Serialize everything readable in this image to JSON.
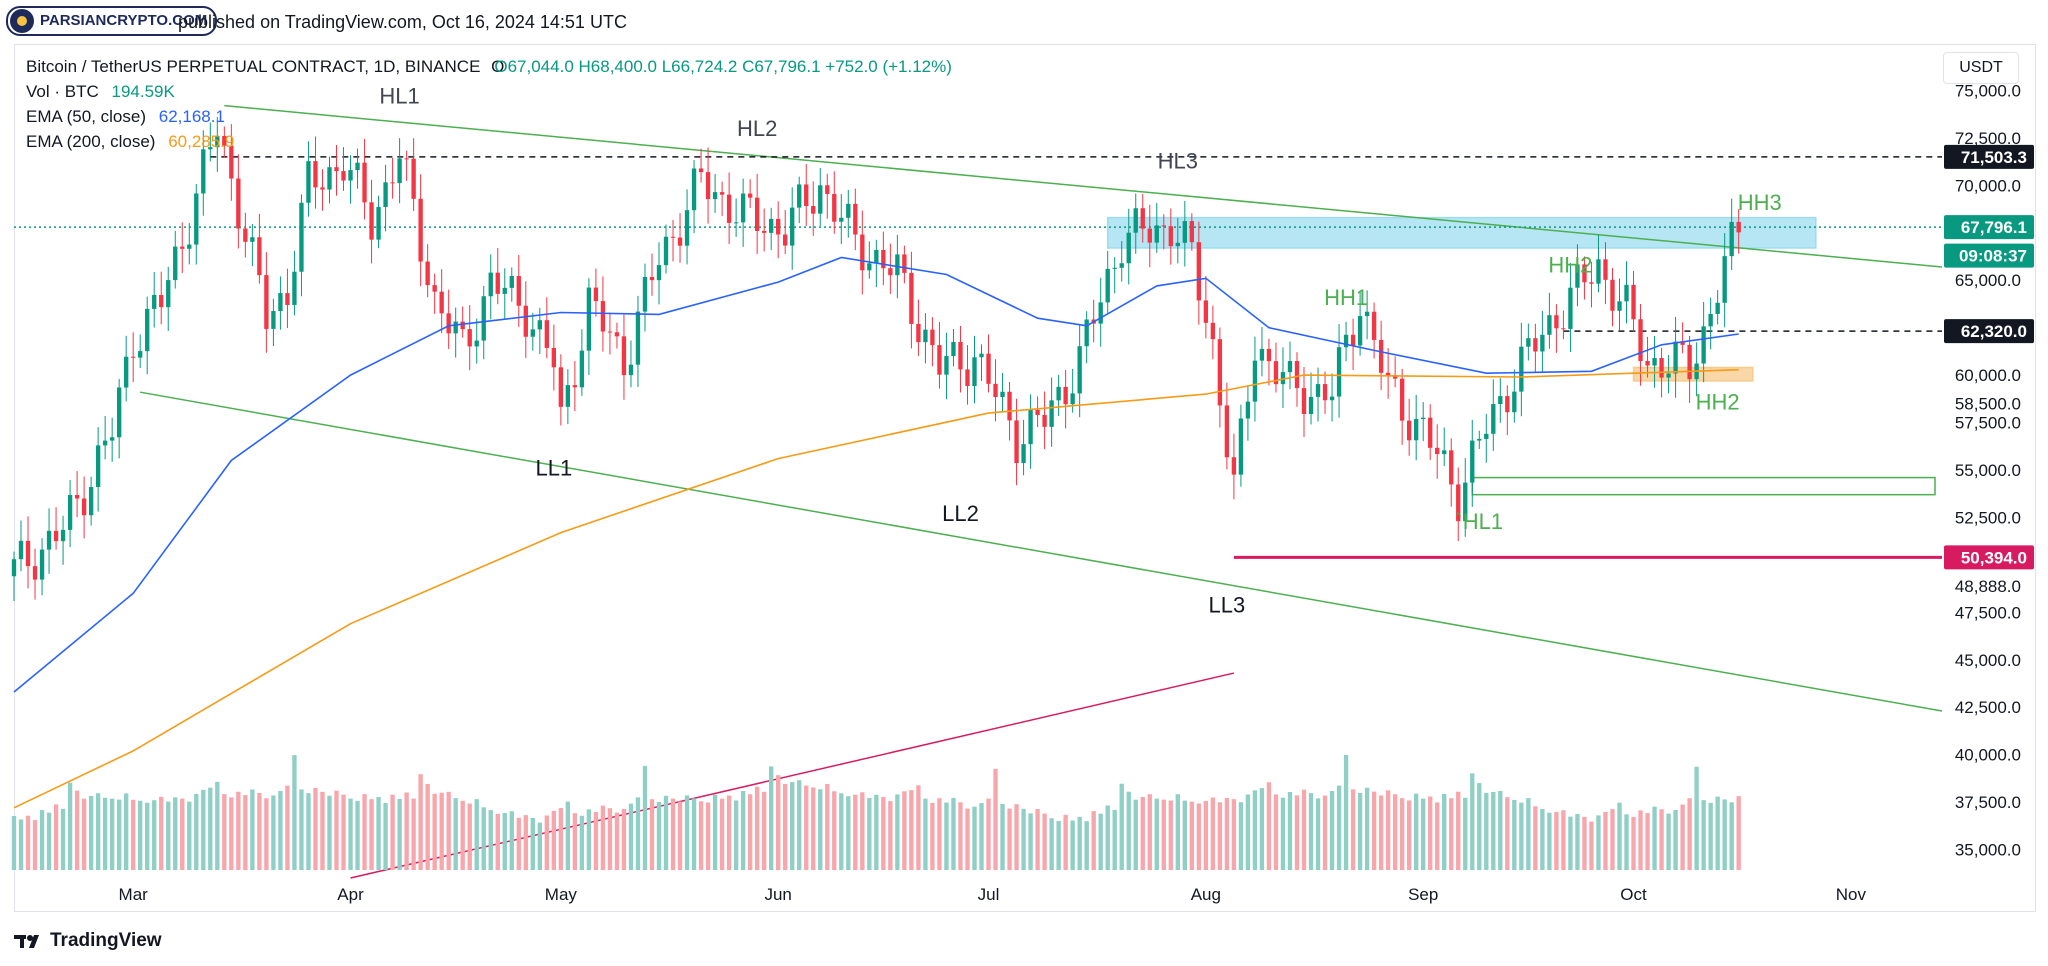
{
  "header": {
    "watermark": "PARSIANCRYPTO.COM",
    "published": "published on TradingView.com, Oct 16, 2024 14:51 UTC"
  },
  "legend": {
    "symbol": "Bitcoin / TetherUS PERPETUAL CONTRACT, 1D, BINANCE",
    "open": "O67,044.0",
    "high": "H68,400.0",
    "low": "L66,724.2",
    "close": "C67,796.1",
    "change": "+752.0 (+1.12%)",
    "vol_label": "Vol · BTC",
    "vol_value": "194.59K",
    "ema50_label": "EMA (50, close)",
    "ema50_value": "62,168.1",
    "ema200_label": "EMA (200, close)",
    "ema200_value": "60,285.9"
  },
  "currency": "USDT",
  "footer": {
    "brand": "TradingView"
  },
  "colors": {
    "up": "#089981",
    "down": "#f23645",
    "vol_up": "#8fcfc5",
    "vol_down": "#f7a6ac",
    "ema50": "#2962ff",
    "ema200": "#f59b16",
    "channel": "#4caf50",
    "support_line": "#d81b60",
    "resistance_zone": "#9ddcf0",
    "demand_zone": "#f7c98a"
  },
  "chart_data": {
    "type": "candlestick",
    "symbol": "BTCUSDT.P",
    "timeframe": "1D",
    "ylim": [
      33500,
      76500
    ],
    "y_ticks": [
      "75,000.0",
      "72,500.0",
      "70,000.0",
      "65,000.0",
      "60,000.0",
      "58,500.0",
      "57,500.0",
      "55,000.0",
      "52,500.0",
      "48,888.0",
      "47,500.0",
      "45,000.0",
      "42,500.0",
      "40,000.0",
      "37,500.0",
      "35,000.0"
    ],
    "x_ticks": [
      {
        "label": "Mar",
        "date": "2024-03-01"
      },
      {
        "label": "Apr",
        "date": "2024-04-01"
      },
      {
        "label": "May",
        "date": "2024-05-01"
      },
      {
        "label": "Jun",
        "date": "2024-06-01"
      },
      {
        "label": "Jul",
        "date": "2024-07-01"
      },
      {
        "label": "Aug",
        "date": "2024-08-01"
      },
      {
        "label": "Sep",
        "date": "2024-09-01"
      },
      {
        "label": "Oct",
        "date": "2024-10-01"
      },
      {
        "label": "Nov",
        "date": "2024-11-01"
      }
    ],
    "x_range": [
      "2024-02-13",
      "2024-11-14"
    ],
    "price_badges": [
      {
        "label": "71,503.3",
        "value": 71503.3,
        "bg": "#131722",
        "color": "#ffffff"
      },
      {
        "label": "67,796.1",
        "value": 67796.1,
        "bg": "#089981",
        "color": "#ffffff"
      },
      {
        "label": "09:08:37",
        "value": 66300,
        "bg": "#089981",
        "color": "#ffffff"
      },
      {
        "label": "62,320.0",
        "value": 62320,
        "bg": "#131722",
        "color": "#ffffff"
      },
      {
        "label": "50,394.0",
        "value": 50394,
        "bg": "#d81b60",
        "color": "#ffffff"
      }
    ],
    "close_path": [
      [
        "2024-02-13",
        49700
      ],
      [
        "2024-02-20",
        51800
      ],
      [
        "2024-02-27",
        57000
      ],
      [
        "2024-03-01",
        62000
      ],
      [
        "2024-03-05",
        63800
      ],
      [
        "2024-03-09",
        68300
      ],
      [
        "2024-03-13",
        73000
      ],
      [
        "2024-03-16",
        69000
      ],
      [
        "2024-03-20",
        63000
      ],
      [
        "2024-03-23",
        64500
      ],
      [
        "2024-03-26",
        70000
      ],
      [
        "2024-03-31",
        71200
      ],
      [
        "2024-04-04",
        68200
      ],
      [
        "2024-04-08",
        71600
      ],
      [
        "2024-04-13",
        64000
      ],
      [
        "2024-04-17",
        61300
      ],
      [
        "2024-04-21",
        64900
      ],
      [
        "2024-04-26",
        63500
      ],
      [
        "2024-04-30",
        60600
      ],
      [
        "2024-05-01",
        57500
      ],
      [
        "2024-05-05",
        63800
      ],
      [
        "2024-05-10",
        60800
      ],
      [
        "2024-05-15",
        66100
      ],
      [
        "2024-05-21",
        70200
      ],
      [
        "2024-05-27",
        68400
      ],
      [
        "2024-06-02",
        67700
      ],
      [
        "2024-06-07",
        70000
      ],
      [
        "2024-06-12",
        67000
      ],
      [
        "2024-06-18",
        65300
      ],
      [
        "2024-06-24",
        60400
      ],
      [
        "2024-06-29",
        61000
      ],
      [
        "2024-07-05",
        56800
      ],
      [
        "2024-07-09",
        57600
      ],
      [
        "2024-07-14",
        60800
      ],
      [
        "2024-07-20",
        67200
      ],
      [
        "2024-07-27",
        67900
      ],
      [
        "2024-07-30",
        66200
      ],
      [
        "2024-08-02",
        61600
      ],
      [
        "2024-08-05",
        53800
      ],
      [
        "2024-08-08",
        61700
      ],
      [
        "2024-08-13",
        59300
      ],
      [
        "2024-08-19",
        59000
      ],
      [
        "2024-08-23",
        64000
      ],
      [
        "2024-08-27",
        59300
      ],
      [
        "2024-09-01",
        57000
      ],
      [
        "2024-09-06",
        53800
      ],
      [
        "2024-09-10",
        57200
      ],
      [
        "2024-09-14",
        60000
      ],
      [
        "2024-09-20",
        63200
      ],
      [
        "2024-09-26",
        65800
      ],
      [
        "2024-09-30",
        63300
      ],
      [
        "2024-10-03",
        60700
      ],
      [
        "2024-10-09",
        60500
      ],
      [
        "2024-10-11",
        62300
      ],
      [
        "2024-10-14",
        65600
      ],
      [
        "2024-10-16",
        67796
      ]
    ],
    "ema50_path": [
      [
        "2024-02-13",
        43300
      ],
      [
        "2024-03-01",
        48500
      ],
      [
        "2024-03-15",
        55500
      ],
      [
        "2024-04-01",
        60000
      ],
      [
        "2024-04-15",
        62600
      ],
      [
        "2024-05-01",
        63300
      ],
      [
        "2024-05-15",
        63200
      ],
      [
        "2024-06-01",
        64900
      ],
      [
        "2024-06-10",
        66200
      ],
      [
        "2024-06-25",
        65300
      ],
      [
        "2024-07-08",
        63000
      ],
      [
        "2024-07-15",
        62600
      ],
      [
        "2024-07-25",
        64700
      ],
      [
        "2024-08-01",
        65100
      ],
      [
        "2024-08-10",
        62500
      ],
      [
        "2024-08-25",
        61300
      ],
      [
        "2024-09-10",
        60100
      ],
      [
        "2024-09-25",
        60200
      ],
      [
        "2024-10-05",
        61600
      ],
      [
        "2024-10-16",
        62168
      ]
    ],
    "ema200_path": [
      [
        "2024-02-13",
        37200
      ],
      [
        "2024-03-01",
        40200
      ],
      [
        "2024-04-01",
        46900
      ],
      [
        "2024-05-01",
        51700
      ],
      [
        "2024-06-01",
        55600
      ],
      [
        "2024-07-01",
        58000
      ],
      [
        "2024-08-01",
        59000
      ],
      [
        "2024-08-15",
        60000
      ],
      [
        "2024-09-15",
        59900
      ],
      [
        "2024-10-16",
        60286
      ]
    ],
    "volume_profile": [
      60,
      55,
      58,
      52,
      62,
      58,
      66,
      60,
      88,
      78,
      68,
      70,
      72,
      66,
      64,
      62,
      68,
      60,
      58,
      55,
      57,
      60,
      54,
      58,
      56,
      52,
      60,
      64,
      66,
      72,
      58,
      54,
      60,
      56,
      62,
      58,
      52,
      55,
      60,
      66,
      100,
      62,
      58,
      64,
      60,
      56,
      62,
      58,
      54,
      52
    ],
    "lines": [
      {
        "name": "channel-top",
        "from": [
          "2024-03-14",
          74200
        ],
        "to": [
          "2024-11-14",
          65700
        ],
        "color": "#4caf50"
      },
      {
        "name": "channel-bottom",
        "from": [
          "2024-03-02",
          59100
        ],
        "to": [
          "2024-11-14",
          42300
        ],
        "color": "#4caf50"
      },
      {
        "name": "resistance-dashed",
        "from": [
          "2024-03-12",
          71503.3
        ],
        "to": [
          "2024-11-14",
          71503.3
        ],
        "color": "#131722",
        "dashed": true
      },
      {
        "name": "neckline-dashed",
        "from": [
          "2024-09-21",
          62320
        ],
        "to": [
          "2024-11-14",
          62320
        ],
        "color": "#131722",
        "dashed": true
      },
      {
        "name": "support-line",
        "from": [
          "2024-08-05",
          50394
        ],
        "to": [
          "2024-11-14",
          50394
        ],
        "color": "#d81b60"
      },
      {
        "name": "current-price-dotted",
        "from": [
          "2024-02-13",
          67796.1
        ],
        "to": [
          "2024-11-14",
          67796.1
        ],
        "color": "#089981",
        "dotted": true
      },
      {
        "name": "volume-trend",
        "from": [
          "2024-04-01",
          33500
        ],
        "to": [
          "2024-08-05",
          44300
        ],
        "color": "#d81b60"
      }
    ],
    "zones": [
      {
        "name": "resistance-zone",
        "from_date": "2024-07-18",
        "to_date": "2024-10-27",
        "from_price": 66700,
        "to_price": 68300,
        "color": "#9ddcf0"
      },
      {
        "name": "demand-zone",
        "from_date": "2024-10-01",
        "to_date": "2024-10-18",
        "from_price": 59700,
        "to_price": 60400,
        "color": "#f7c98a"
      },
      {
        "name": "green-box",
        "from_date": "2024-09-08",
        "to_date": "2024-11-13",
        "from_price": 53700,
        "to_price": 54600,
        "color": "#ffffff",
        "stroke": "#4caf50"
      }
    ],
    "annotations": [
      {
        "text": "HL1",
        "date": "2024-04-08",
        "price": 74300,
        "color": "#434651"
      },
      {
        "text": "HL2",
        "date": "2024-05-29",
        "price": 72600,
        "color": "#434651"
      },
      {
        "text": "HL3",
        "date": "2024-07-28",
        "price": 70900,
        "color": "#434651"
      },
      {
        "text": "LL1",
        "date": "2024-04-30",
        "price": 54700,
        "color": "#131722"
      },
      {
        "text": "LL2",
        "date": "2024-06-27",
        "price": 52300,
        "color": "#131722"
      },
      {
        "text": "LL3",
        "date": "2024-08-04",
        "price": 47500,
        "color": "#131722"
      },
      {
        "text": "HH1",
        "date": "2024-08-21",
        "price": 63700,
        "color": "#4caf50"
      },
      {
        "text": "HH2",
        "date": "2024-09-22",
        "price": 65400,
        "color": "#4caf50"
      },
      {
        "text": "HH2",
        "date": "2024-10-13",
        "price": 58200,
        "color": "#4caf50"
      },
      {
        "text": "HH3",
        "date": "2024-10-19",
        "price": 68700,
        "color": "#4caf50"
      },
      {
        "text": "`HL1",
        "date": "2024-09-09",
        "price": 51900,
        "color": "#4caf50"
      }
    ]
  }
}
